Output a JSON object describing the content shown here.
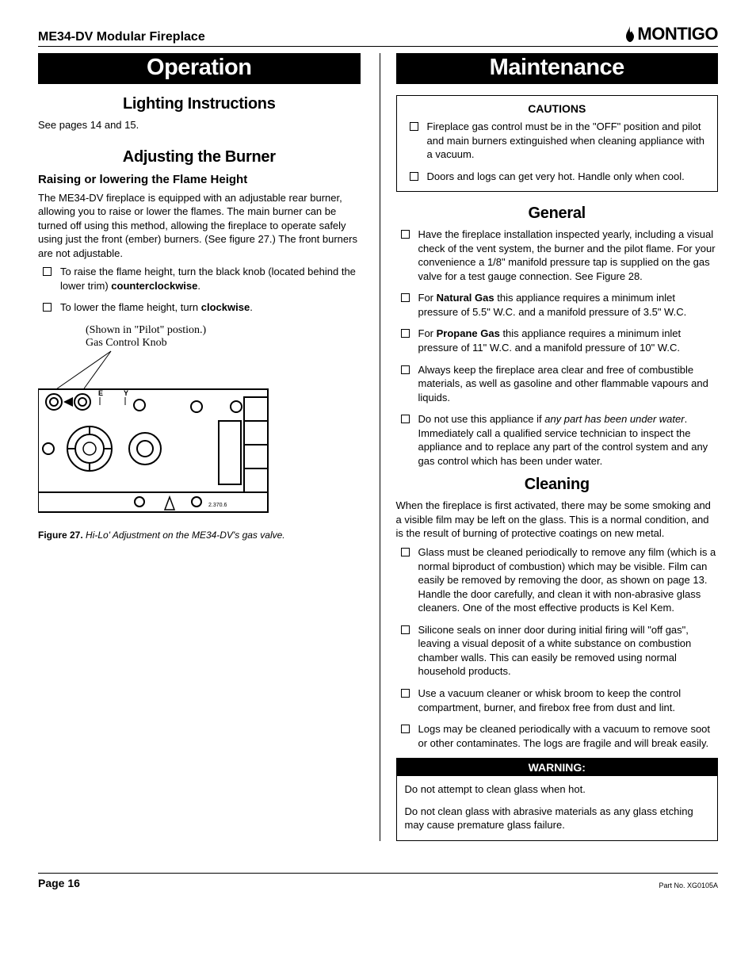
{
  "header": {
    "product": "ME34-DV Modular Fireplace",
    "brand": "MONTIGO"
  },
  "left": {
    "banner": "Operation",
    "lighting": {
      "heading": "Lighting Instructions",
      "text": "See pages 14 and 15."
    },
    "adjusting": {
      "heading": "Adjusting the Burner",
      "subheading": "Raising or lowering the Flame Height",
      "para": "The ME34-DV fireplace is equipped with an adjustable rear burner, allowing you to raise or lower the flames. The main burner can be turned off using this method, allowing the fireplace to operate safely using just the front (ember) burners. (See figure 27.) The front burners are not adjustable.",
      "bullets": [
        "To raise the flame height, turn the black knob (located behind the lower trim) <b>counterclockwise</b>.",
        "To lower the flame height, turn <b>clockwise</b>."
      ],
      "figure_line1": "(Shown in \"Pilot\" postion.)",
      "figure_line2": "Gas Control Knob",
      "caption_num": "Figure 27.",
      "caption_text": "Hi-Lo' Adjustment on the ME34-DV's gas valve."
    }
  },
  "right": {
    "banner": "Maintenance",
    "cautions": {
      "title": "CAUTIONS",
      "items": [
        "Fireplace gas control must be in the \"OFF\" position and pilot and main burners extinguished when cleaning appliance with a vacuum.",
        "Doors and logs can get very hot. Handle only when cool."
      ]
    },
    "general": {
      "heading": "General",
      "items": [
        "Have the fireplace installation inspected yearly, including a visual check of the vent system, the burner and the pilot flame. For your convenience a 1/8\" manifold pressure tap is supplied on the gas valve for a test gauge connection. See Figure 28.",
        "For <b>Natural Gas</b> this appliance requires a minimum inlet pressure of 5.5\" W.C. and a manifold pressure of 3.5\" W.C.",
        "For <b>Propane Gas</b> this appliance requires a minimum inlet pressure of  11\" W.C. and a manifold pressure of 10\" W.C.",
        "Always keep the fireplace area clear and free of combustible materials, as well as gasoline and other flammable vapours and liquids.",
        "Do not use this appliance if <i>any part has been under water</i>. Immediately call a qualified service technician to inspect the appliance and to replace any part of the control system and any gas control which has been under water."
      ]
    },
    "cleaning": {
      "heading": "Cleaning",
      "intro": "When the fireplace is first activated, there may be some smoking and a visible film may be left on the glass. This is a normal condition, and is the result of burning of protective coatings on new metal.",
      "items": [
        "Glass must be cleaned periodically to remove any film (which is a normal biproduct of combustion) which may be visible. Film can easily be removed by removing the door, as shown on page 13. Handle the door carefully, and clean it with non-abrasive glass cleaners. One of the most effective products is Kel Kem.",
        "Silicone seals on inner door during initial firing will \"off gas\", leaving a visual deposit of a white substance on combustion chamber walls. This can easily be removed using normal household products.",
        "Use a vacuum cleaner or whisk broom to keep the control compartment, burner, and firebox free from dust and lint.",
        "Logs may be cleaned periodically with a vacuum to remove soot or other contaminates. The logs are fragile and will break easily."
      ]
    },
    "warning": {
      "title": "WARNING:",
      "p1": "Do not attempt to clean glass when hot.",
      "p2": "Do not clean glass with abrasive materials as any glass etching may cause premature glass failure."
    }
  },
  "footer": {
    "page": "Page 16",
    "partno": "Part No. XG0105A"
  }
}
